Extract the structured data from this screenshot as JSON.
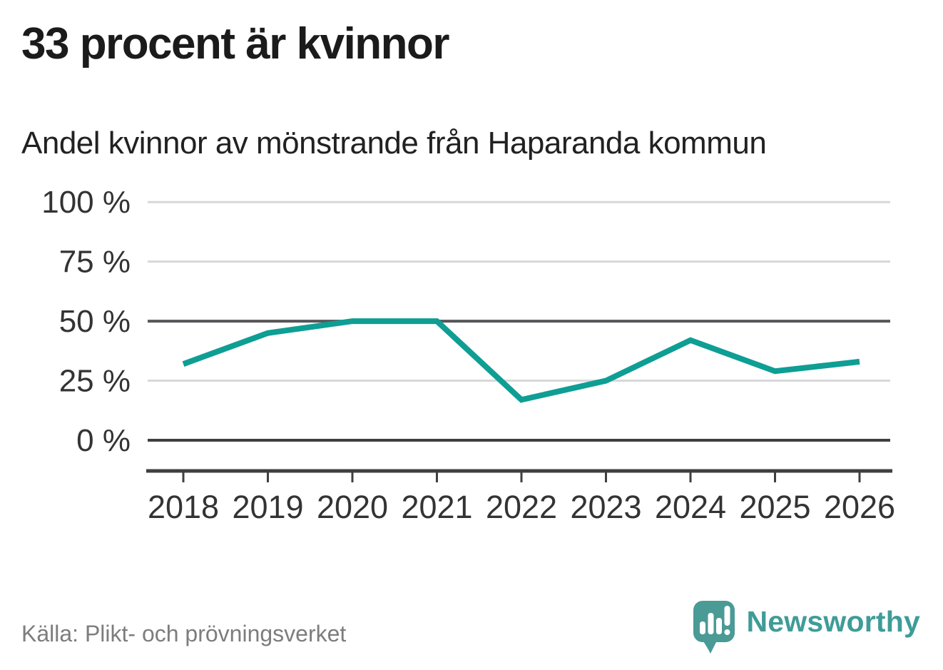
{
  "header": {
    "title": "33 procent är kvinnor",
    "subtitle": "Andel kvinnor av mönstrande från Haparanda kommun"
  },
  "chart_data": {
    "type": "line",
    "title": "Andel kvinnor av mönstrande från Haparanda kommun",
    "categories": [
      "2018",
      "2019",
      "2020",
      "2021",
      "2022",
      "2023",
      "2024",
      "2025",
      "2026"
    ],
    "series": [
      {
        "name": "Andel kvinnor av mönstrande",
        "values": [
          32,
          45,
          50,
          50,
          17,
          25,
          42,
          29,
          33
        ]
      }
    ],
    "unit": "%",
    "xlabel": "",
    "ylabel": "",
    "ylim": [
      0,
      100
    ],
    "yticks": [
      {
        "value": 0,
        "label": "0 %",
        "emphasis": "strong"
      },
      {
        "value": 25,
        "label": "25 %",
        "emphasis": "light"
      },
      {
        "value": 50,
        "label": "50 %",
        "emphasis": "medium"
      },
      {
        "value": 75,
        "label": "75 %",
        "emphasis": "light"
      },
      {
        "value": 100,
        "label": "100 %",
        "emphasis": "light"
      }
    ],
    "grid": "horizontal",
    "legend": "none"
  },
  "footer": {
    "source": "Källa: Plikt- och prövningsverket",
    "brand": "Newsworthy"
  },
  "colors": {
    "line": "#0e9e94",
    "grid_light": "#d8d8d8",
    "grid_medium": "#56565a",
    "grid_strong": "#3f3f41",
    "axis": "#3f3f41",
    "tick_label": "#333333",
    "title": "#1b1b1b",
    "subtitle": "#212121",
    "source": "#7d7d7d",
    "brand_text": "#3f9c98",
    "logo": "#4a9a96",
    "logo_glyph": "#ffffff"
  }
}
